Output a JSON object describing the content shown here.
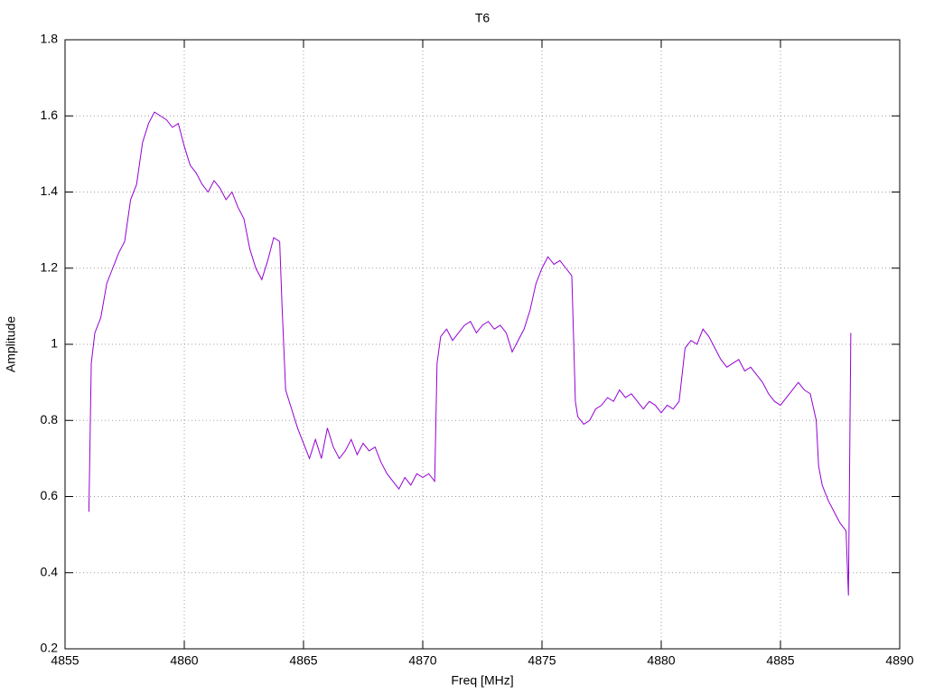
{
  "chart_data": {
    "type": "line",
    "title": "T6",
    "x_label": "Freq [MHz]",
    "y_label": "Amplitude",
    "color": "#9400d3",
    "grid": true,
    "xlim": [
      4855,
      4890
    ],
    "xticks": [
      4855,
      4860,
      4865,
      4870,
      4875,
      4880,
      4885,
      4890
    ],
    "ylim": [
      0.2,
      1.8
    ],
    "yticks": [
      0.2,
      0.4,
      0.6,
      0.8,
      1,
      1.2,
      1.4,
      1.6,
      1.8
    ],
    "x": [
      4856.0,
      4856.1,
      4856.25,
      4856.5,
      4856.75,
      4857.0,
      4857.25,
      4857.5,
      4857.75,
      4858.0,
      4858.25,
      4858.5,
      4858.75,
      4859.0,
      4859.25,
      4859.5,
      4859.75,
      4860.0,
      4860.25,
      4860.5,
      4860.75,
      4861.0,
      4861.25,
      4861.5,
      4861.75,
      4862.0,
      4862.25,
      4862.5,
      4862.75,
      4863.0,
      4863.25,
      4863.5,
      4863.75,
      4864.0,
      4864.1,
      4864.25,
      4864.5,
      4864.75,
      4865.0,
      4865.25,
      4865.5,
      4865.75,
      4866.0,
      4866.25,
      4866.5,
      4866.75,
      4867.0,
      4867.25,
      4867.5,
      4867.75,
      4868.0,
      4868.25,
      4868.5,
      4868.75,
      4869.0,
      4869.25,
      4869.5,
      4869.75,
      4870.0,
      4870.25,
      4870.5,
      4870.6,
      4870.75,
      4871.0,
      4871.25,
      4871.5,
      4871.75,
      4872.0,
      4872.25,
      4872.5,
      4872.75,
      4873.0,
      4873.25,
      4873.5,
      4873.75,
      4874.0,
      4874.25,
      4874.5,
      4874.75,
      4875.0,
      4875.25,
      4875.5,
      4875.75,
      4876.0,
      4876.25,
      4876.4,
      4876.5,
      4876.75,
      4877.0,
      4877.25,
      4877.5,
      4877.75,
      4878.0,
      4878.25,
      4878.5,
      4878.75,
      4879.0,
      4879.25,
      4879.5,
      4879.75,
      4880.0,
      4880.25,
      4880.5,
      4880.75,
      4881.0,
      4881.25,
      4881.5,
      4881.75,
      4882.0,
      4882.25,
      4882.5,
      4882.75,
      4883.0,
      4883.25,
      4883.5,
      4883.75,
      4884.0,
      4884.25,
      4884.5,
      4884.75,
      4885.0,
      4885.25,
      4885.5,
      4885.75,
      4886.0,
      4886.25,
      4886.5,
      4886.6,
      4886.75,
      4887.0,
      4887.25,
      4887.5,
      4887.75,
      4887.85,
      4887.95
    ],
    "values": [
      0.56,
      0.95,
      1.03,
      1.07,
      1.16,
      1.2,
      1.24,
      1.27,
      1.38,
      1.42,
      1.53,
      1.58,
      1.61,
      1.6,
      1.59,
      1.57,
      1.58,
      1.52,
      1.47,
      1.45,
      1.42,
      1.4,
      1.43,
      1.41,
      1.38,
      1.4,
      1.36,
      1.33,
      1.25,
      1.2,
      1.17,
      1.22,
      1.28,
      1.27,
      1.1,
      0.88,
      0.83,
      0.78,
      0.74,
      0.7,
      0.75,
      0.7,
      0.78,
      0.73,
      0.7,
      0.72,
      0.75,
      0.71,
      0.74,
      0.72,
      0.73,
      0.69,
      0.66,
      0.64,
      0.62,
      0.65,
      0.63,
      0.66,
      0.65,
      0.66,
      0.64,
      0.95,
      1.02,
      1.04,
      1.01,
      1.03,
      1.05,
      1.06,
      1.03,
      1.05,
      1.06,
      1.04,
      1.05,
      1.03,
      0.98,
      1.01,
      1.04,
      1.09,
      1.16,
      1.2,
      1.23,
      1.21,
      1.22,
      1.2,
      1.18,
      0.85,
      0.81,
      0.79,
      0.8,
      0.83,
      0.84,
      0.86,
      0.85,
      0.88,
      0.86,
      0.87,
      0.85,
      0.83,
      0.85,
      0.84,
      0.82,
      0.84,
      0.83,
      0.85,
      0.99,
      1.01,
      1.0,
      1.04,
      1.02,
      0.99,
      0.96,
      0.94,
      0.95,
      0.96,
      0.93,
      0.94,
      0.92,
      0.9,
      0.87,
      0.85,
      0.84,
      0.86,
      0.88,
      0.9,
      0.88,
      0.87,
      0.8,
      0.68,
      0.63,
      0.59,
      0.56,
      0.53,
      0.51,
      0.34,
      1.03
    ]
  }
}
